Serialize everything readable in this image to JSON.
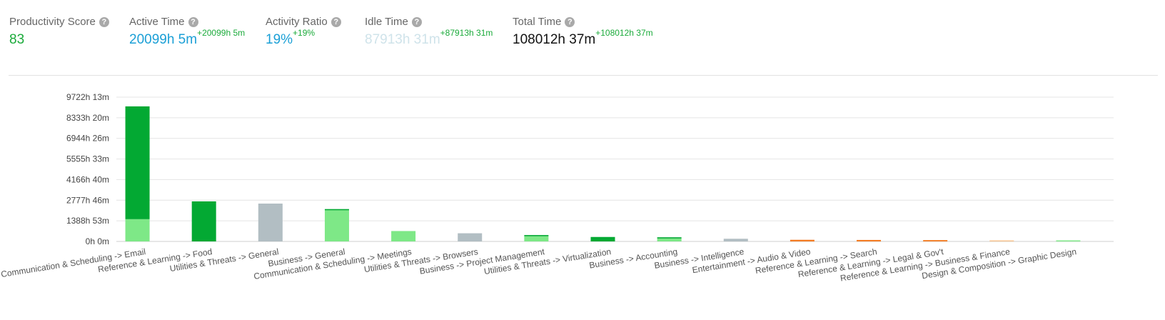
{
  "stats": [
    {
      "label": "Productivity Score",
      "value": "83",
      "delta": "",
      "color": "#1aaa3a"
    },
    {
      "label": "Active Time",
      "value": "20099h 5m",
      "delta": "+20099h 5m",
      "color": "#1a9fd6"
    },
    {
      "label": "Activity Ratio",
      "value": "19%",
      "delta": "+19%",
      "color": "#1a9fd6"
    },
    {
      "label": "Idle Time",
      "value": "87913h 31m",
      "delta": "+87913h 31m",
      "color": "#cfe3ea"
    },
    {
      "label": "Total Time",
      "value": "108012h 37m",
      "delta": "+108012h 37m",
      "color": "#111111"
    }
  ],
  "help_icon": "question-circle-icon",
  "chart_data": {
    "type": "bar",
    "stacked": true,
    "grid": true,
    "ylim": [
      0,
      9722.2
    ],
    "y_tick_labels": [
      "0h 0m",
      "1388h 53m",
      "2777h 46m",
      "4166h 40m",
      "5555h 33m",
      "6944h 26m",
      "8333h 20m",
      "9722h 13m"
    ],
    "categories": [
      "Communication & Scheduling -> Email",
      "Reference & Learning -> Food",
      "Utilities & Threats -> General",
      "Business -> General",
      "Communication & Scheduling -> Meetings",
      "Utilities & Threats -> Browsers",
      "Business -> Project Management",
      "Utilities & Threats -> Virtualization",
      "Business -> Accounting",
      "Business -> Intelligence",
      "Entertainment -> Audio & Video",
      "Reference & Learning -> Search",
      "Reference & Learning -> Legal & Gov't",
      "Reference & Learning -> Business & Finance",
      "Design & Composition -> Graphic Design"
    ],
    "series": [
      {
        "color": "#7ee887",
        "values": [
          1500,
          0,
          0,
          2100,
          700,
          0,
          350,
          0,
          200,
          0,
          0,
          0,
          0,
          0,
          70
        ]
      },
      {
        "color": "#03a933",
        "values": [
          7600,
          2700,
          0,
          80,
          0,
          0,
          80,
          300,
          80,
          0,
          0,
          0,
          0,
          0,
          0
        ]
      },
      {
        "color": "#b2bec3",
        "values": [
          0,
          0,
          2550,
          0,
          0,
          550,
          0,
          0,
          0,
          180,
          0,
          0,
          0,
          0,
          0
        ]
      },
      {
        "color": "#f37b22",
        "values": [
          0,
          0,
          0,
          0,
          0,
          0,
          0,
          0,
          0,
          0,
          110,
          100,
          90,
          0,
          0
        ]
      },
      {
        "color": "#f7c490",
        "values": [
          0,
          0,
          0,
          0,
          0,
          0,
          0,
          0,
          0,
          0,
          0,
          0,
          0,
          70,
          0
        ]
      }
    ]
  }
}
